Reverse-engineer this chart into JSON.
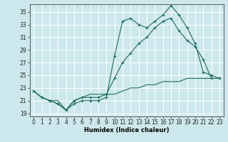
{
  "xlabel": "Humidex (Indice chaleur)",
  "bg_color": "#cde8ec",
  "grid_color": "#ffffff",
  "line_color": "#1e6b5e",
  "xlim": [
    -0.5,
    23.5
  ],
  "ylim": [
    18.5,
    36.2
  ],
  "xticks": [
    0,
    1,
    2,
    3,
    4,
    5,
    6,
    7,
    8,
    9,
    10,
    11,
    12,
    13,
    14,
    15,
    16,
    17,
    18,
    19,
    20,
    21,
    22,
    23
  ],
  "yticks": [
    19,
    21,
    23,
    25,
    27,
    29,
    31,
    33,
    35
  ],
  "series1": [
    22.5,
    21.5,
    21.0,
    20.5,
    19.5,
    20.5,
    21.0,
    21.0,
    21.0,
    21.5,
    28.0,
    33.5,
    34.0,
    33.0,
    32.5,
    33.5,
    34.5,
    36.0,
    34.5,
    32.5,
    30.0,
    25.5,
    25.0,
    24.5
  ],
  "series2": [
    22.5,
    21.5,
    21.0,
    20.5,
    19.5,
    21.0,
    21.5,
    21.5,
    21.5,
    22.0,
    24.5,
    27.0,
    28.5,
    30.0,
    31.0,
    32.5,
    33.5,
    34.0,
    32.0,
    30.5,
    29.5,
    27.5,
    24.5,
    24.5
  ],
  "series3": [
    22.5,
    21.5,
    21.0,
    21.0,
    19.5,
    21.0,
    21.5,
    22.0,
    22.0,
    22.0,
    22.0,
    22.5,
    23.0,
    23.0,
    23.5,
    23.5,
    24.0,
    24.0,
    24.0,
    24.5,
    24.5,
    24.5,
    24.5,
    24.5
  ],
  "tick_fontsize": 5.5,
  "xlabel_fontsize": 6.0
}
